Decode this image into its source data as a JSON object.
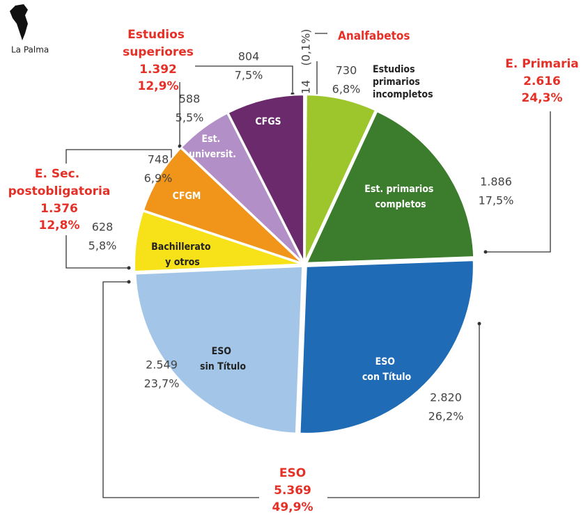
{
  "chart_data": {
    "type": "pie",
    "logo": "La Palma",
    "categories": [
      "Analfabetos",
      "Estudios primarios incompletos",
      "Est. primarios completos",
      "ESO con Título",
      "ESO sin Título",
      "Bachillerato y otros",
      "CFGM",
      "Est. universit.",
      "CFGS"
    ],
    "values": [
      14,
      730,
      1886,
      2820,
      2549,
      628,
      748,
      588,
      804
    ],
    "value_labels": [
      "14",
      "730",
      "1.886",
      "2.820",
      "2.549",
      "628",
      "748",
      "588",
      "804"
    ],
    "percents": [
      0.1,
      6.8,
      17.5,
      26.2,
      23.7,
      5.8,
      6.9,
      5.5,
      7.5
    ],
    "percent_labels": [
      "(0,1%)",
      "6,8%",
      "17,5%",
      "26,2%",
      "23,7%",
      "5,8%",
      "6,9%",
      "5,5%",
      "7,5%"
    ],
    "colors": [
      "#bdbdbd",
      "#9dc62d",
      "#3b7d2c",
      "#1f6bb5",
      "#a3c6e8",
      "#f7e21a",
      "#f0941a",
      "#b38fc7",
      "#6b2a6b"
    ],
    "groups": [
      {
        "name": "Estudios superiores",
        "value": 1392,
        "value_label": "1.392",
        "percent": 12.9,
        "percent_label": "12,9%"
      },
      {
        "name": "E. Primaria",
        "value": 2616,
        "value_label": "2.616",
        "percent": 24.3,
        "percent_label": "24,3%"
      },
      {
        "name": "E. Sec. postobligatoria",
        "value": 1376,
        "value_label": "1.376",
        "percent": 12.8,
        "percent_label": "12,8%"
      },
      {
        "name": "ESO",
        "value": 5369,
        "value_label": "5.369",
        "percent": 49.9,
        "percent_label": "49,9%"
      }
    ]
  }
}
